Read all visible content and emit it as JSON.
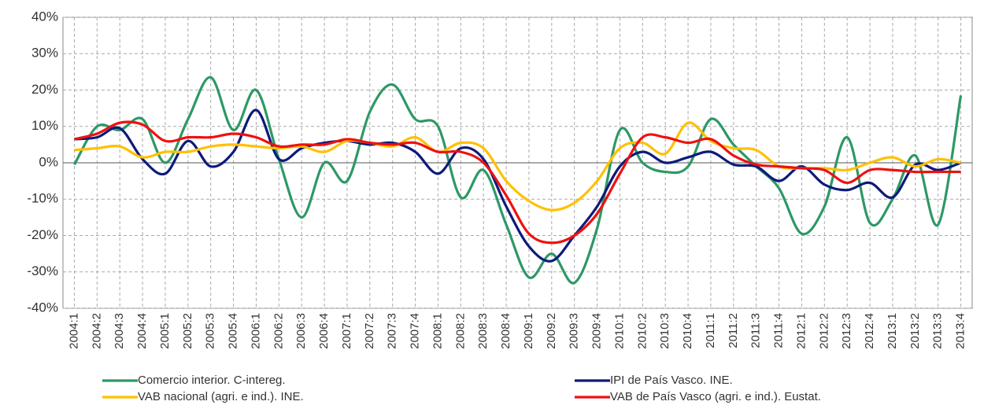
{
  "chart_data": {
    "type": "line",
    "categories": [
      "2004:1",
      "2004:2",
      "2004:3",
      "2004:4",
      "2005:1",
      "2005:2",
      "2005:3",
      "2005:4",
      "2006:1",
      "2006:2",
      "2006:3",
      "2006:4",
      "2007:1",
      "2007:2",
      "2007:3",
      "2007:4",
      "2008:1",
      "2008:2",
      "2008:3",
      "2008:4",
      "2009:1",
      "2009:2",
      "2009:3",
      "2009:4",
      "2010:1",
      "2010:2",
      "2010:3",
      "2010:4",
      "2011:1",
      "2011:2",
      "2011:3",
      "2011:4",
      "2012:1",
      "2012:2",
      "2012:3",
      "2012:4",
      "2013:1",
      "2013:2",
      "2013:3",
      "2013:4"
    ],
    "series": [
      {
        "name": "Comercio interior. C-intereg.",
        "color": "#2e9866",
        "values": [
          -0.5,
          10,
          9,
          12,
          0,
          12,
          23.5,
          9,
          20,
          1,
          -15,
          0,
          -5,
          14,
          21.5,
          12,
          10,
          -9.5,
          -2,
          -17,
          -31.5,
          -25,
          -33,
          -18,
          9,
          0,
          -2.5,
          -1,
          12,
          5,
          -1,
          -7,
          -19.5,
          -12,
          7,
          -16.5,
          -10,
          2,
          -17,
          18.5
        ]
      },
      {
        "name": "IPI de País Vasco. INE.",
        "color": "#0d1a7a",
        "values": [
          6.5,
          7,
          9.5,
          1,
          -3,
          6,
          -1,
          3,
          14.5,
          1,
          4,
          5.5,
          6,
          5,
          5.5,
          3,
          -3,
          4,
          1,
          -12,
          -23,
          -27,
          -20,
          -12,
          -1,
          3,
          0,
          1.5,
          3,
          -0.5,
          -1,
          -5,
          -1,
          -6,
          -7.5,
          -5.5,
          -9.5,
          -0.5,
          -2,
          0
        ]
      },
      {
        "name": "VAB nacional (agri. e ind.). INE.",
        "color": "#ffc000",
        "values": [
          3.5,
          4,
          4.5,
          1.5,
          3,
          3,
          4.5,
          5,
          4.5,
          4,
          4.5,
          3,
          6,
          5.5,
          4.5,
          7,
          3,
          5.5,
          4,
          -5,
          -10.5,
          -13,
          -11,
          -5,
          4,
          5.5,
          2.5,
          11,
          6,
          4,
          3.5,
          -1,
          -1.5,
          -1.5,
          -2,
          0,
          1.5,
          -1,
          1,
          0
        ]
      },
      {
        "name": "VAB de País Vasco (agri. e ind.). Eustat.",
        "color": "#ee1111",
        "values": [
          6.5,
          8,
          11,
          10.5,
          6,
          7,
          7,
          8,
          7,
          4.5,
          5,
          5,
          6.5,
          5.5,
          5,
          5.5,
          3,
          3,
          0,
          -9,
          -19.5,
          -22,
          -20,
          -14,
          -3,
          7,
          7,
          5.5,
          6.5,
          2,
          -0.5,
          -1,
          -1.5,
          -2,
          -5.5,
          -2,
          -2,
          -2.5,
          -2.5,
          -2.5
        ]
      }
    ],
    "ylim": [
      -40,
      40
    ],
    "yticks": [
      {
        "value": -40,
        "label": "-40%"
      },
      {
        "value": -30,
        "label": "-30%"
      },
      {
        "value": -20,
        "label": "-20%"
      },
      {
        "value": -10,
        "label": "-10%"
      },
      {
        "value": 0,
        "label": "0%"
      },
      {
        "value": 10,
        "label": "10%"
      },
      {
        "value": 20,
        "label": "20%"
      },
      {
        "value": 30,
        "label": "30%"
      },
      {
        "value": 40,
        "label": "40%"
      }
    ],
    "grid": true
  }
}
